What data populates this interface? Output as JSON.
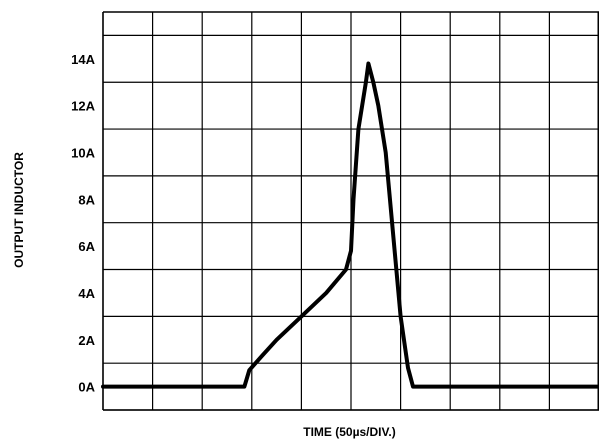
{
  "chart_data": {
    "type": "line",
    "xlabel": "TIME (50µs/DIV.)",
    "ylabel": "OUTPUT INDUCTOR",
    "ylim": [
      -1,
      16
    ],
    "xlim": [
      0,
      10
    ],
    "x_units": "divisions",
    "grid": true,
    "yticks": [
      {
        "label": "0A",
        "value": 0
      },
      {
        "label": "2A",
        "value": 2
      },
      {
        "label": "4A",
        "value": 4
      },
      {
        "label": "6A",
        "value": 6
      },
      {
        "label": "8A",
        "value": 8
      },
      {
        "label": "10A",
        "value": 10
      },
      {
        "label": "12A",
        "value": 12
      },
      {
        "label": "14A",
        "value": 14
      }
    ],
    "series": [
      {
        "x": [
          0,
          2.85,
          2.95,
          3.2,
          3.5,
          4.0,
          4.5,
          4.9,
          5.0,
          5.05,
          5.15,
          5.3,
          5.35,
          5.45,
          5.55,
          5.7,
          6.0,
          6.15,
          6.25,
          7.0,
          8.0,
          9.0,
          10.0
        ],
        "y": [
          0,
          0,
          0.7,
          1.3,
          2.0,
          3.0,
          4.0,
          5.0,
          5.8,
          8.0,
          11.0,
          13.0,
          13.8,
          13.0,
          12.0,
          10.0,
          3.0,
          0.8,
          0,
          0,
          0,
          0,
          0
        ]
      }
    ]
  }
}
